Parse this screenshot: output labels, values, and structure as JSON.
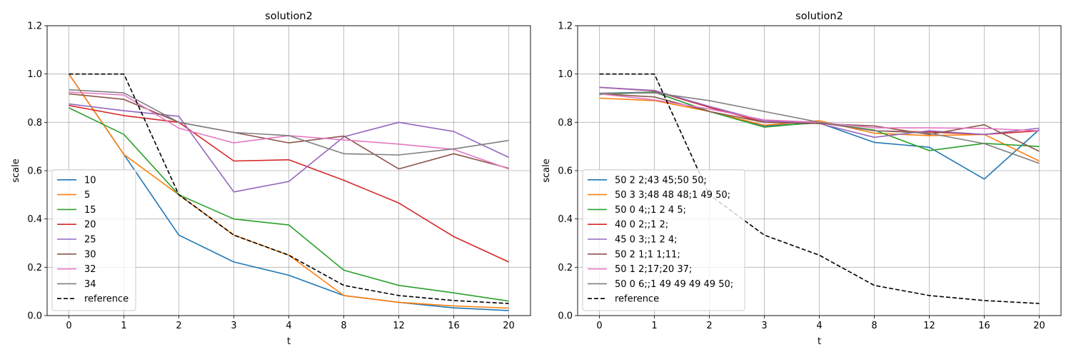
{
  "figure": {
    "background": "#ffffff"
  },
  "chart_data": [
    {
      "type": "line",
      "title": "solution2",
      "xlabel": "t",
      "ylabel": "scale",
      "categories": [
        "0",
        "1",
        "2",
        "3",
        "4",
        "8",
        "12",
        "16",
        "20"
      ],
      "ylim": [
        0.0,
        1.2
      ],
      "yticks": [
        "0.0",
        "0.2",
        "0.4",
        "0.6",
        "0.8",
        "1.0",
        "1.2"
      ],
      "grid": true,
      "legend_position": "lower-left",
      "series": [
        {
          "name": "10",
          "color": "#1f77b4",
          "dashed": false,
          "values": [
            1.0,
            0.667,
            0.333,
            0.222,
            0.167,
            0.083,
            0.055,
            0.032,
            0.021
          ]
        },
        {
          "name": "5",
          "color": "#ff7f0e",
          "dashed": false,
          "values": [
            1.0,
            0.667,
            0.5,
            0.333,
            0.25,
            0.083,
            0.055,
            0.04,
            0.031
          ]
        },
        {
          "name": "15",
          "color": "#2ca02c",
          "dashed": false,
          "values": [
            0.86,
            0.75,
            0.5,
            0.4,
            0.375,
            0.188,
            0.125,
            0.094,
            0.06
          ]
        },
        {
          "name": "20",
          "color": "#d62728",
          "dashed": false,
          "values": [
            0.87,
            0.828,
            0.8,
            0.64,
            0.645,
            0.56,
            0.466,
            0.327,
            0.222
          ]
        },
        {
          "name": "25",
          "color": "#9467bd",
          "dashed": false,
          "values": [
            0.876,
            0.848,
            0.825,
            0.512,
            0.555,
            0.74,
            0.8,
            0.762,
            0.655
          ]
        },
        {
          "name": "30",
          "color": "#8c564b",
          "dashed": false,
          "values": [
            0.918,
            0.895,
            0.8,
            0.758,
            0.715,
            0.743,
            0.607,
            0.67,
            0.61
          ]
        },
        {
          "name": "32",
          "color": "#e377c2",
          "dashed": false,
          "values": [
            0.925,
            0.913,
            0.776,
            0.715,
            0.745,
            0.727,
            0.71,
            0.688,
            0.607
          ]
        },
        {
          "name": "34",
          "color": "#7f7f7f",
          "dashed": false,
          "values": [
            0.935,
            0.922,
            0.8,
            0.758,
            0.745,
            0.67,
            0.665,
            0.69,
            0.725
          ]
        },
        {
          "name": "reference",
          "color": "#000000",
          "dashed": true,
          "values": [
            1.0,
            1.0,
            0.5,
            0.333,
            0.25,
            0.125,
            0.083,
            0.0625,
            0.05
          ]
        }
      ]
    },
    {
      "type": "line",
      "title": "solution2",
      "xlabel": "t",
      "ylabel": "scale",
      "categories": [
        "0",
        "1",
        "2",
        "3",
        "4",
        "8",
        "12",
        "16",
        "20"
      ],
      "ylim": [
        0.0,
        1.2
      ],
      "yticks": [
        "0.0",
        "0.2",
        "0.4",
        "0.6",
        "0.8",
        "1.0",
        "1.2"
      ],
      "grid": true,
      "legend_position": "lower-left",
      "series": [
        {
          "name": "50 2 2;43 45;50 50;",
          "color": "#1f77b4",
          "dashed": false,
          "values": [
            0.92,
            0.925,
            0.845,
            0.785,
            0.797,
            0.717,
            0.697,
            0.565,
            0.77
          ]
        },
        {
          "name": "50 3 3;48 48 48;1 49 50;",
          "color": "#ff7f0e",
          "dashed": false,
          "values": [
            0.9,
            0.89,
            0.845,
            0.788,
            0.807,
            0.755,
            0.745,
            0.75,
            0.64
          ]
        },
        {
          "name": "50 0 4;;1 2 4 5;",
          "color": "#2ca02c",
          "dashed": false,
          "values": [
            0.915,
            0.925,
            0.845,
            0.78,
            0.8,
            0.768,
            0.683,
            0.713,
            0.7
          ]
        },
        {
          "name": "40 0 2;;1 2;",
          "color": "#d62728",
          "dashed": false,
          "values": [
            0.945,
            0.93,
            0.862,
            0.8,
            0.798,
            0.765,
            0.76,
            0.75,
            0.765
          ]
        },
        {
          "name": "45 0 3;;1 2 4;",
          "color": "#9467bd",
          "dashed": false,
          "values": [
            0.945,
            0.932,
            0.866,
            0.806,
            0.795,
            0.738,
            0.765,
            0.75,
            0.776
          ]
        },
        {
          "name": "50 2 1;1 1;11;",
          "color": "#8c564b",
          "dashed": false,
          "values": [
            0.918,
            0.905,
            0.845,
            0.8,
            0.795,
            0.785,
            0.75,
            0.79,
            0.68
          ]
        },
        {
          "name": "50 1 2;17;20 37;",
          "color": "#e377c2",
          "dashed": false,
          "values": [
            0.918,
            0.893,
            0.855,
            0.81,
            0.8,
            0.777,
            0.777,
            0.775,
            0.765
          ]
        },
        {
          "name": "50 0 6;;1 49 49 49 49 50;",
          "color": "#7f7f7f",
          "dashed": false,
          "values": [
            0.92,
            0.922,
            0.89,
            0.845,
            0.8,
            0.765,
            0.755,
            0.712,
            0.63
          ]
        },
        {
          "name": "reference",
          "color": "#000000",
          "dashed": true,
          "values": [
            1.0,
            1.0,
            0.5,
            0.333,
            0.25,
            0.125,
            0.083,
            0.0625,
            0.05
          ]
        }
      ]
    }
  ]
}
